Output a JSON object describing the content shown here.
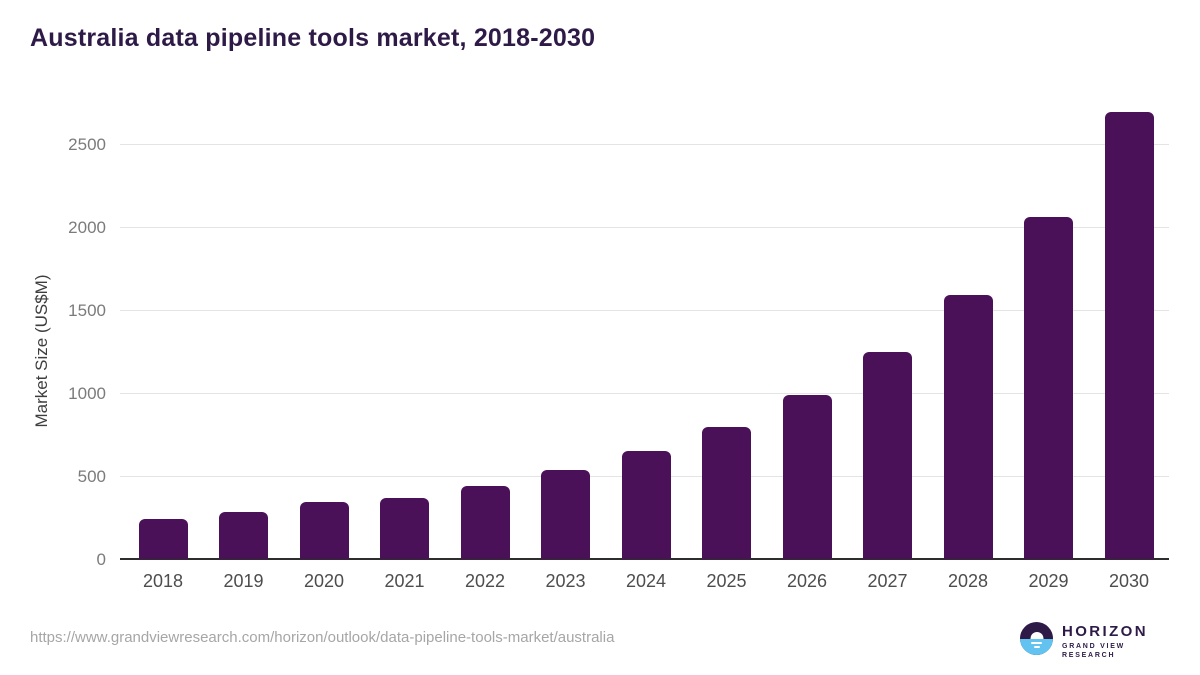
{
  "chart_data": {
    "type": "bar",
    "title": "Australia data pipeline tools market, 2018-2030",
    "xlabel": "",
    "ylabel": "Market Size (US$M)",
    "categories": [
      "2018",
      "2019",
      "2020",
      "2021",
      "2022",
      "2023",
      "2024",
      "2025",
      "2026",
      "2027",
      "2028",
      "2029",
      "2030"
    ],
    "values": [
      240,
      285,
      345,
      370,
      440,
      535,
      650,
      795,
      990,
      1245,
      1590,
      2060,
      2690
    ],
    "ylim": [
      0,
      2700
    ],
    "yticks": [
      0,
      500,
      1000,
      1500,
      2000,
      2500
    ],
    "grid": true,
    "legend": "none",
    "bar_color": "#4a1159"
  },
  "footer": {
    "source_url": "https://www.grandviewresearch.com/horizon/outlook/data-pipeline-tools-market/australia",
    "logo": {
      "brand": "HORIZON",
      "subtitle": "GRAND VIEW RESEARCH"
    }
  },
  "colors": {
    "title": "#2e1a47",
    "bar": "#4a1159",
    "gridline": "#e4e4e4",
    "axis_line": "#2d2d2d",
    "tick_label": "#7b7b7b",
    "category_label": "#4d4d4d",
    "source_text": "#a6a6a6",
    "logo_purple": "#2e1a47",
    "logo_blue": "#62c3f0"
  }
}
